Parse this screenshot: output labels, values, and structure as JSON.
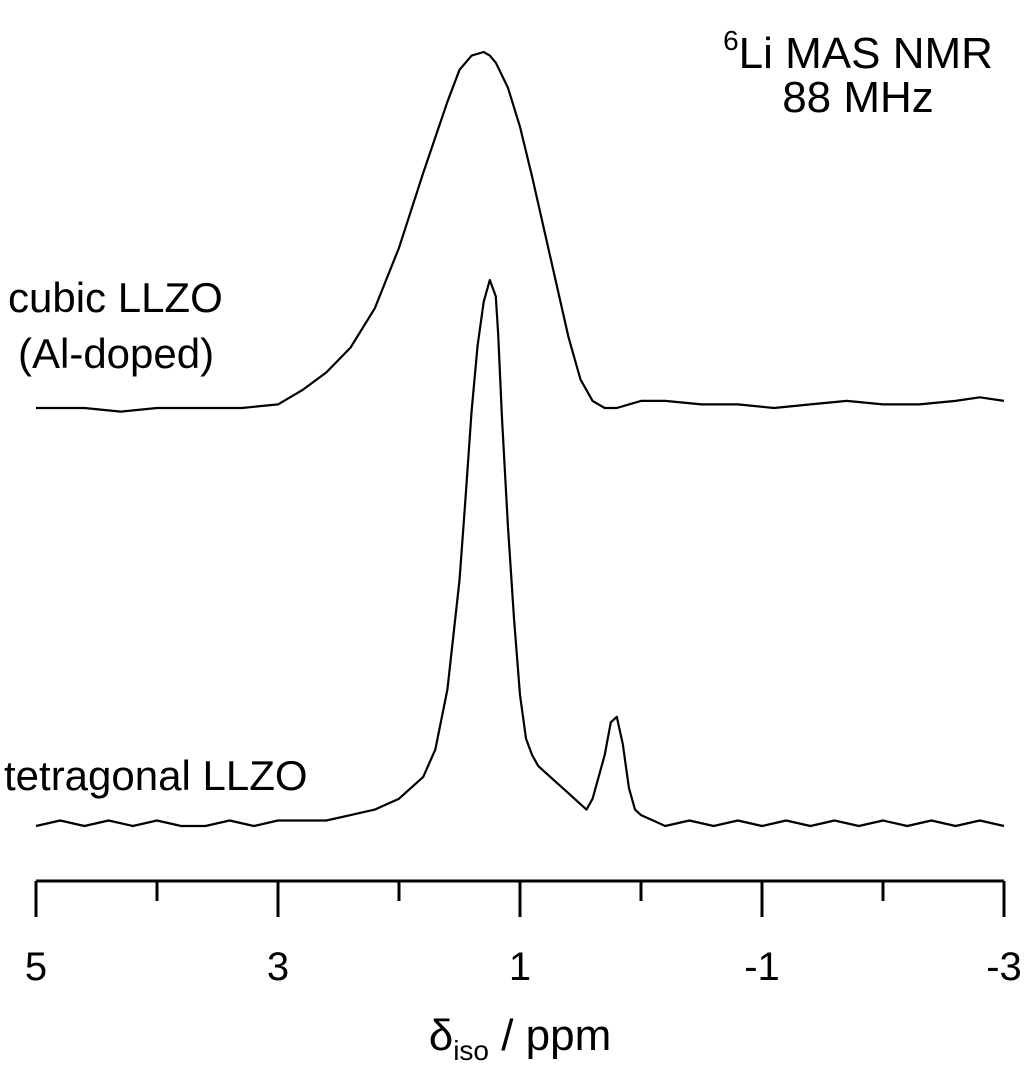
{
  "chart_data": {
    "type": "line",
    "title_prefix_superscript": "6",
    "title_line1": "Li MAS NMR",
    "title_line2": "88 MHz",
    "xlabel_symbol": "δ",
    "xlabel_subscript": "iso",
    "xlabel_rest": " / ppm",
    "xlim": [
      5,
      -3
    ],
    "x_reversed": true,
    "grid": false,
    "xticks_major": [
      5,
      3,
      1,
      -1,
      -3
    ],
    "xtick_labels": [
      "5",
      "3",
      "1",
      "-1",
      "-3"
    ],
    "xticks_minor": [
      4,
      2,
      0,
      -2
    ],
    "series": [
      {
        "name": "cubic LLZO\n(Al-doped)",
        "label_line1": "cubic LLZO",
        "label_line2": "(Al-doped)",
        "color": "#000000",
        "x": [
          5.0,
          4.6,
          4.3,
          4.0,
          3.6,
          3.3,
          3.0,
          2.8,
          2.6,
          2.4,
          2.2,
          2.0,
          1.8,
          1.6,
          1.5,
          1.4,
          1.3,
          1.25,
          1.2,
          1.1,
          1.0,
          0.9,
          0.8,
          0.7,
          0.6,
          0.5,
          0.4,
          0.3,
          0.2,
          0.1,
          0.0,
          -0.2,
          -0.5,
          -0.8,
          -1.1,
          -1.4,
          -1.7,
          -2.0,
          -2.3,
          -2.6,
          -2.8,
          -3.0
        ],
        "y": [
          0.0,
          0.0,
          -0.01,
          0.0,
          0.0,
          0.0,
          0.01,
          0.05,
          0.1,
          0.17,
          0.28,
          0.45,
          0.66,
          0.86,
          0.95,
          0.99,
          1.0,
          0.99,
          0.97,
          0.9,
          0.79,
          0.65,
          0.5,
          0.35,
          0.2,
          0.08,
          0.02,
          0.0,
          0.0,
          0.01,
          0.02,
          0.02,
          0.01,
          0.01,
          0.0,
          0.01,
          0.02,
          0.01,
          0.01,
          0.02,
          0.03,
          0.02
        ]
      },
      {
        "name": "tetragonal LLZO",
        "label_line1": "tetragonal LLZO",
        "color": "#000000",
        "x": [
          5.0,
          4.8,
          4.6,
          4.4,
          4.2,
          4.0,
          3.8,
          3.6,
          3.4,
          3.2,
          3.0,
          2.8,
          2.6,
          2.4,
          2.2,
          2.0,
          1.9,
          1.8,
          1.7,
          1.6,
          1.5,
          1.45,
          1.4,
          1.35,
          1.3,
          1.25,
          1.2,
          1.18,
          1.15,
          1.1,
          1.05,
          1.0,
          0.95,
          0.9,
          0.85,
          0.8,
          0.7,
          0.6,
          0.5,
          0.45,
          0.4,
          0.3,
          0.25,
          0.2,
          0.15,
          0.1,
          0.05,
          0.0,
          -0.1,
          -0.2,
          -0.4,
          -0.6,
          -0.8,
          -1.0,
          -1.2,
          -1.4,
          -1.6,
          -1.8,
          -2.0,
          -2.2,
          -2.4,
          -2.6,
          -2.8,
          -3.0
        ],
        "y": [
          0.0,
          0.01,
          0.0,
          0.01,
          0.0,
          0.01,
          0.0,
          0.0,
          0.01,
          0.0,
          0.01,
          0.01,
          0.01,
          0.02,
          0.03,
          0.05,
          0.07,
          0.09,
          0.14,
          0.25,
          0.45,
          0.6,
          0.76,
          0.88,
          0.96,
          1.0,
          0.97,
          0.9,
          0.75,
          0.55,
          0.38,
          0.24,
          0.16,
          0.13,
          0.11,
          0.1,
          0.08,
          0.06,
          0.04,
          0.03,
          0.05,
          0.13,
          0.19,
          0.2,
          0.15,
          0.07,
          0.03,
          0.02,
          0.01,
          0.0,
          0.01,
          0.0,
          0.01,
          0.0,
          0.01,
          0.0,
          0.01,
          0.0,
          0.01,
          0.0,
          0.01,
          0.0,
          0.01,
          0.0
        ]
      }
    ]
  }
}
